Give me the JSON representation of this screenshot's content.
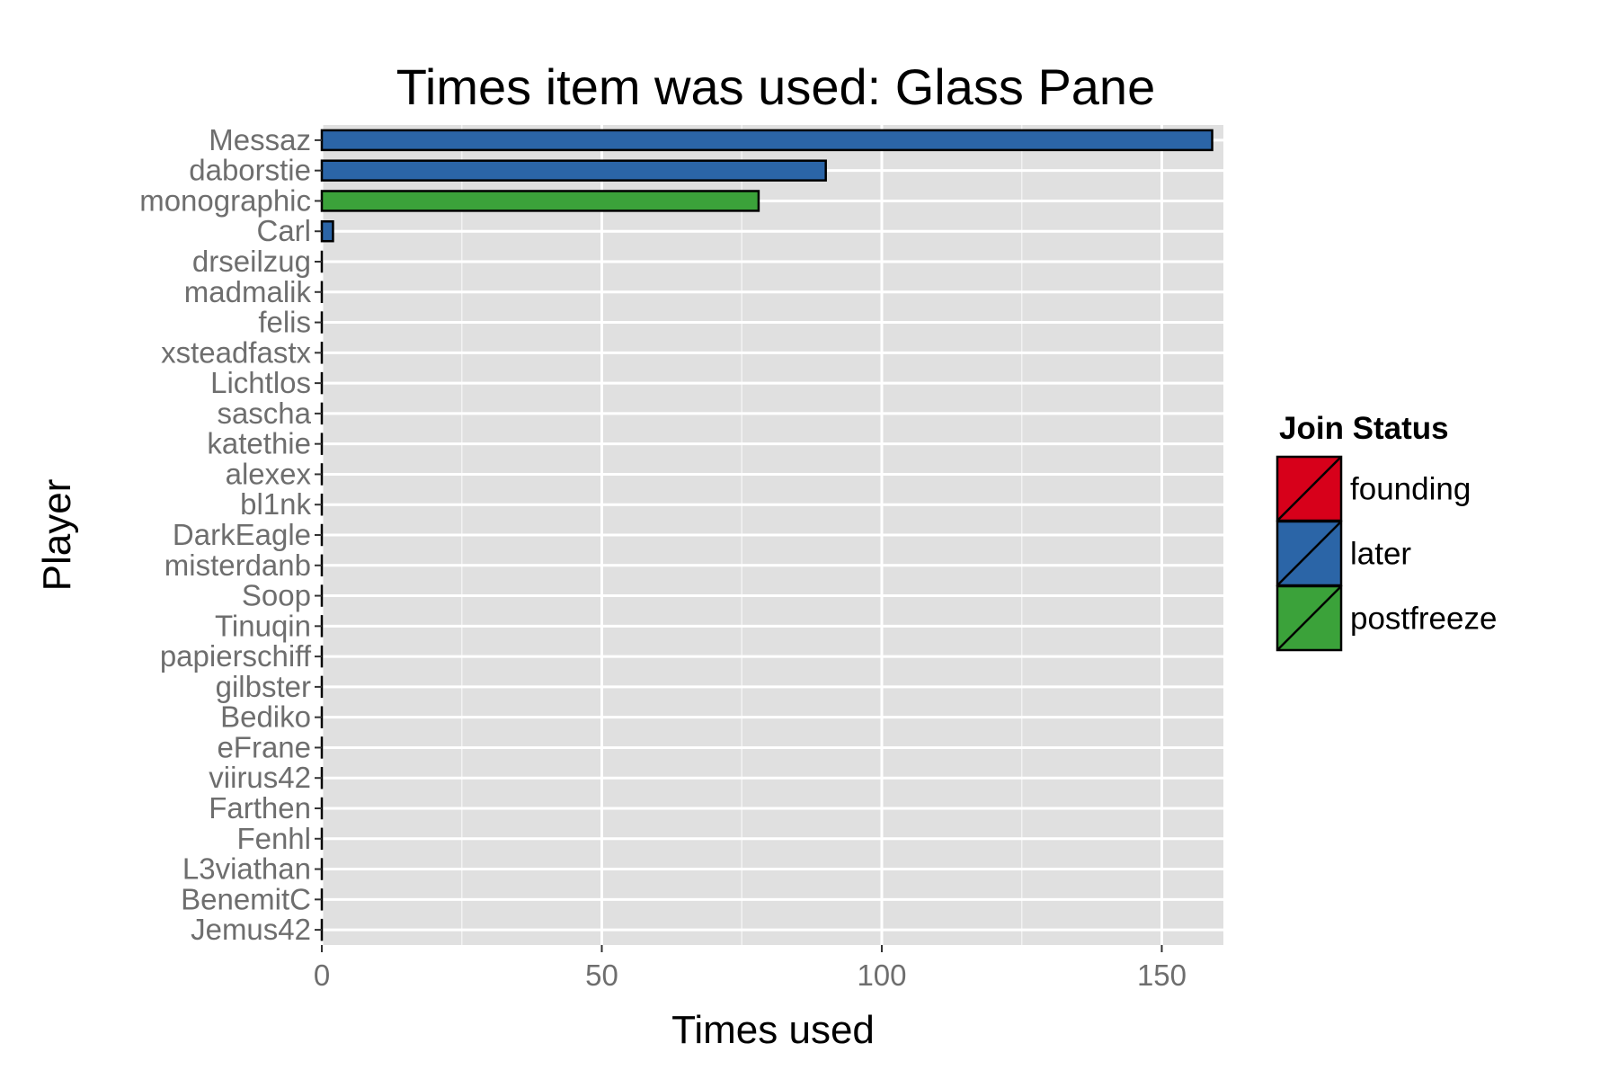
{
  "chart_data": {
    "type": "bar",
    "orientation": "horizontal",
    "title": "Times item was used: Glass Pane",
    "xlabel": "Times used",
    "ylabel": "Player",
    "xlim": [
      0,
      161
    ],
    "x_ticks": [
      0,
      50,
      100,
      150
    ],
    "grid": true,
    "legend": {
      "title": "Join Status",
      "placement": "right",
      "entries": [
        {
          "label": "founding",
          "color": "#d7001a"
        },
        {
          "label": "later",
          "color": "#2b65a7"
        },
        {
          "label": "postfreeze",
          "color": "#3ba23a"
        }
      ]
    },
    "categories": [
      "Messaz",
      "daborstie",
      "monographic",
      "Carl",
      "drseilzug",
      "madmalik",
      "felis",
      "xsteadfastx",
      "Lichtlos",
      "sascha",
      "katethie",
      "alexex",
      "bl1nk",
      "DarkEagle",
      "misterdanb",
      "Soop",
      "Tinuqin",
      "papierschiff",
      "gilbster",
      "Bediko",
      "eFrane",
      "viirus42",
      "Farthen",
      "Fenhl",
      "L3viathan",
      "BenemitC",
      "Jemus42"
    ],
    "values": [
      159,
      90,
      78,
      2,
      0,
      0,
      0,
      0,
      0,
      0,
      0,
      0,
      0,
      0,
      0,
      0,
      0,
      0,
      0,
      0,
      0,
      0,
      0,
      0,
      0,
      0,
      0
    ],
    "groups": [
      "later",
      "later",
      "postfreeze",
      "later",
      "later",
      "later",
      "later",
      "later",
      "later",
      "later",
      "later",
      "later",
      "later",
      "later",
      "later",
      "later",
      "later",
      "later",
      "later",
      "later",
      "later",
      "later",
      "later",
      "later",
      "later",
      "later",
      "later"
    ]
  }
}
